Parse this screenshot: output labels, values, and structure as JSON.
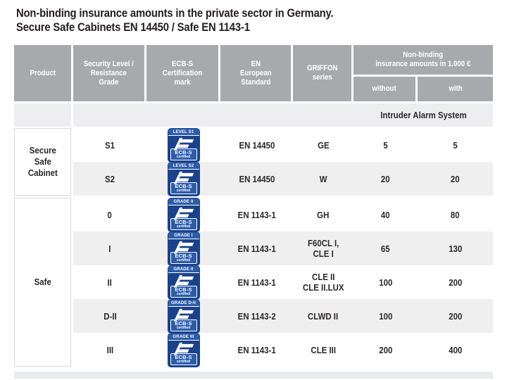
{
  "title": {
    "line1": "Non-binding insurance amounts in the private sector in Germany.",
    "line2": "Secure Safe Cabinets EN 14450 / Safe EN 1143-1"
  },
  "header": {
    "product": "Product",
    "security_level": "Security Level /\nResistance\nGrade",
    "certification": "ECB-S\nCertification\nmark",
    "standard": "EN\nEuropean\nStandard",
    "series": "GRIFFON\nseries",
    "insurance": "Non-binding\ninsurance amounts in 1.000 €",
    "without": "without",
    "with": "with"
  },
  "alarm_note": "Intruder Alarm System",
  "badge": {
    "ecbs": "ECB-S",
    "certified": "certified"
  },
  "groups": [
    {
      "product": "Secure\nSafe\nCabinet",
      "rows": [
        {
          "grade": "S1",
          "badge_label": "LEVEL S1",
          "standard": "EN 14450",
          "series": "GE",
          "without": "5",
          "with": "5"
        },
        {
          "grade": "S2",
          "badge_label": "LEVEL S2",
          "standard": "EN 14450",
          "series": "W",
          "without": "20",
          "with": "20"
        }
      ]
    },
    {
      "product": "Safe",
      "rows": [
        {
          "grade": "0",
          "badge_label": "GRADE 0",
          "standard": "EN 1143-1",
          "series": "GH",
          "without": "40",
          "with": "80"
        },
        {
          "grade": "I",
          "badge_label": "GRADE I",
          "standard": "EN 1143-1",
          "series": "F60CL I,\nCLE I",
          "without": "65",
          "with": "130"
        },
        {
          "grade": "II",
          "badge_label": "GRADE II",
          "standard": "EN 1143-1",
          "series": "CLE II\nCLE II.LUX",
          "without": "100",
          "with": "200"
        },
        {
          "grade": "D-II",
          "badge_label": "GRADE D-II",
          "standard": "EN 1143-2",
          "series": "CLWD II",
          "without": "100",
          "with": "200"
        },
        {
          "grade": "III",
          "badge_label": "GRADE III",
          "standard": "EN 1143-1",
          "series": "CLE III",
          "without": "200",
          "with": "400"
        }
      ]
    }
  ],
  "colors": {
    "header_bg": "#a7a9ac",
    "row_alt_bg": "#efeff0",
    "alarm_row_bg": "#eeeef0",
    "bottom_band_bg": "#e9ebee",
    "badge_navy": "#1a418c",
    "badge_light_blue": "#2c5ca9",
    "text": "#2b2829"
  }
}
